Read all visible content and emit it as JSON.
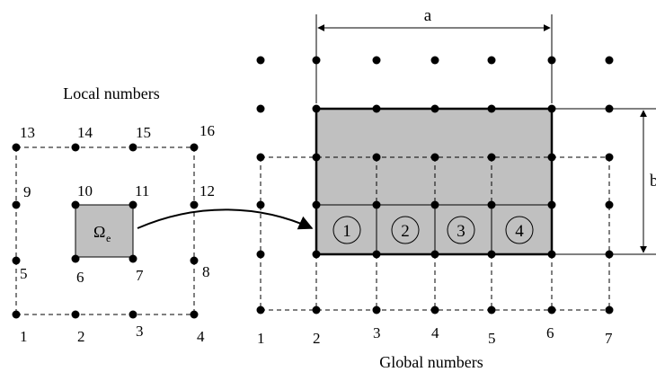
{
  "labels": {
    "local_title": "Local numbers",
    "global_title": "Global numbers",
    "dimension_a": "a",
    "dimension_b": "b",
    "omega_symbol": "Ω",
    "omega_subscript": "e"
  },
  "local_node_labels": [
    "1",
    "2",
    "3",
    "4",
    "5",
    "6",
    "7",
    "8",
    "9",
    "10",
    "11",
    "12",
    "13",
    "14",
    "15",
    "16"
  ],
  "global_node_labels": [
    "1",
    "2",
    "3",
    "4",
    "5",
    "6",
    "7"
  ],
  "element_labels": [
    "1",
    "2",
    "3",
    "4"
  ],
  "colors": {
    "element_fill": "#c0c0c0",
    "line": "#000000",
    "node": "#000000",
    "background": "#ffffff"
  }
}
